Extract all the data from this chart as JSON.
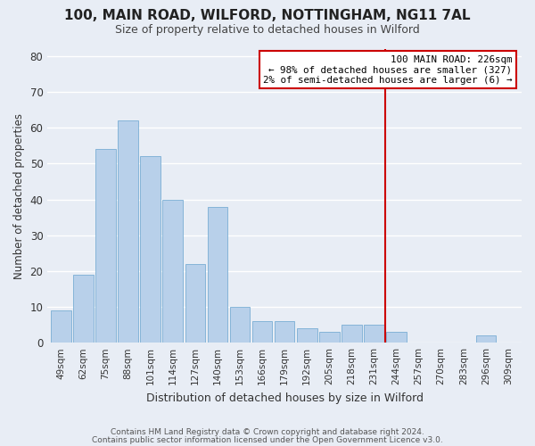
{
  "title": "100, MAIN ROAD, WILFORD, NOTTINGHAM, NG11 7AL",
  "subtitle": "Size of property relative to detached houses in Wilford",
  "xlabel": "Distribution of detached houses by size in Wilford",
  "ylabel": "Number of detached properties",
  "categories": [
    "49sqm",
    "62sqm",
    "75sqm",
    "88sqm",
    "101sqm",
    "114sqm",
    "127sqm",
    "140sqm",
    "153sqm",
    "166sqm",
    "179sqm",
    "192sqm",
    "205sqm",
    "218sqm",
    "231sqm",
    "244sqm",
    "257sqm",
    "270sqm",
    "283sqm",
    "296sqm",
    "309sqm"
  ],
  "values": [
    9,
    19,
    54,
    62,
    52,
    40,
    22,
    38,
    10,
    6,
    6,
    4,
    3,
    5,
    5,
    3,
    0,
    0,
    0,
    2,
    0
  ],
  "bar_color": "#b8d0ea",
  "bar_edge_color": "#7aaed4",
  "background_color": "#e8edf5",
  "grid_color": "#ffffff",
  "vline_x": 14.5,
  "vline_color": "#cc0000",
  "annotation_title": "100 MAIN ROAD: 226sqm",
  "annotation_line1": "← 98% of detached houses are smaller (327)",
  "annotation_line2": "2% of semi-detached houses are larger (6) →",
  "annotation_box_facecolor": "#ffffff",
  "annotation_border_color": "#cc0000",
  "ylim": [
    0,
    82
  ],
  "yticks": [
    0,
    10,
    20,
    30,
    40,
    50,
    60,
    70,
    80
  ],
  "footer_line1": "Contains HM Land Registry data © Crown copyright and database right 2024.",
  "footer_line2": "Contains public sector information licensed under the Open Government Licence v3.0."
}
